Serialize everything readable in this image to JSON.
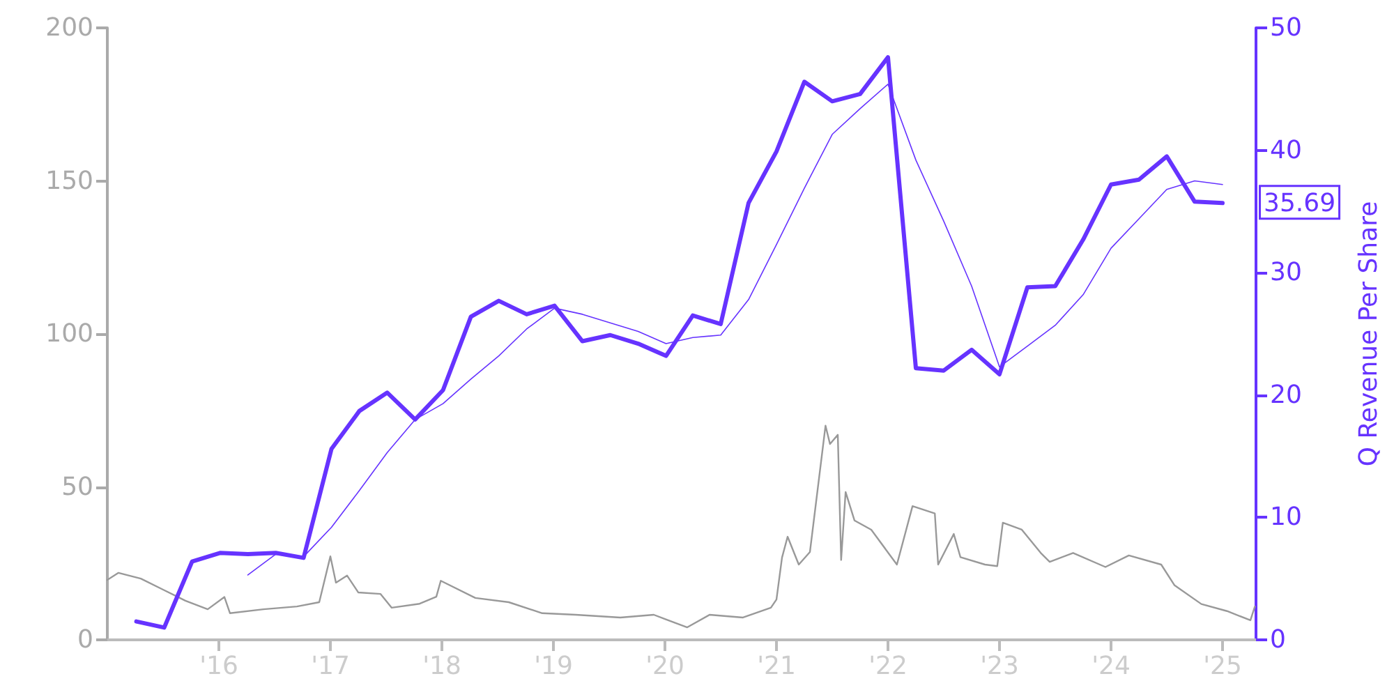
{
  "chart_data": {
    "type": "line",
    "y2label": "Q Revenue Per Share",
    "xlim": [
      2015.0,
      2025.3
    ],
    "xticks": [
      {
        "value": 2016,
        "label": "'16"
      },
      {
        "value": 2017,
        "label": "'17"
      },
      {
        "value": 2018,
        "label": "'18"
      },
      {
        "value": 2019,
        "label": "'19"
      },
      {
        "value": 2020,
        "label": "'20"
      },
      {
        "value": 2021,
        "label": "'21"
      },
      {
        "value": 2022,
        "label": "'22"
      },
      {
        "value": 2023,
        "label": "'23"
      },
      {
        "value": 2024,
        "label": "'24"
      },
      {
        "value": 2025,
        "label": "'25"
      }
    ],
    "ylim": [
      0,
      200
    ],
    "yticks": [
      0,
      50,
      100,
      150,
      200
    ],
    "y2lim": [
      0,
      50
    ],
    "y2ticks": [
      0,
      10,
      20,
      30,
      40,
      50
    ],
    "grid": false,
    "marker": "none",
    "series": [
      {
        "color": "#999999",
        "axis": "y",
        "x": [
          2015.0,
          2015.1,
          2015.3,
          2015.5,
          2015.7,
          2015.9,
          2016.05,
          2016.1,
          2016.4,
          2016.7,
          2016.9,
          2017.0,
          2017.05,
          2017.15,
          2017.25,
          2017.45,
          2017.55,
          2017.8,
          2017.95,
          2017.99,
          2018.3,
          2018.6,
          2018.9,
          2019.2,
          2019.6,
          2019.9,
          2020.0,
          2020.2,
          2020.4,
          2020.7,
          2020.95,
          2021.0,
          2021.05,
          2021.1,
          2021.2,
          2021.3,
          2021.44,
          2021.48,
          2021.55,
          2021.58,
          2021.62,
          2021.7,
          2021.85,
          2022.08,
          2022.22,
          2022.42,
          2022.45,
          2022.59,
          2022.65,
          2022.87,
          2022.98,
          2023.03,
          2023.2,
          2023.37,
          2023.45,
          2023.66,
          2023.95,
          2024.16,
          2024.45,
          2024.57,
          2024.81,
          2025.04,
          2025.25,
          2025.29
        ],
        "values": [
          19.6,
          21.9,
          20,
          16.4,
          12.8,
          10,
          14,
          8.7,
          10,
          10.9,
          12.3,
          27.3,
          18.7,
          21,
          15.5,
          15,
          10.5,
          11.8,
          14.1,
          19.3,
          13.7,
          12.3,
          8.7,
          8.2,
          7.3,
          8.2,
          6.8,
          4.1,
          8.2,
          7.3,
          10.5,
          13.2,
          26.9,
          33.7,
          24.6,
          28.7,
          70,
          64,
          67,
          26.1,
          48.3,
          39,
          36,
          24.6,
          43.7,
          41.3,
          24.6,
          34.6,
          27,
          24.6,
          24.1,
          38.3,
          36,
          28.4,
          25.5,
          28.4,
          23.8,
          27.6,
          24.6,
          17.8,
          11.7,
          9.4,
          6.4,
          10.9
        ]
      },
      {
        "color": "#6633ff",
        "axis": "y2",
        "x": [
          2015.26,
          2015.51,
          2015.76,
          2016.01,
          2016.26,
          2016.51,
          2016.76,
          2017.01,
          2017.26,
          2017.51,
          2017.76,
          2018.01,
          2018.26,
          2018.51,
          2018.76,
          2019.01,
          2019.26,
          2019.51,
          2019.76,
          2020.01,
          2020.25,
          2020.5,
          2020.75,
          2021.0,
          2021.25,
          2021.5,
          2021.75,
          2022.0,
          2022.25,
          2022.5,
          2022.75,
          2023.0,
          2023.25,
          2023.5,
          2023.75,
          2024.0,
          2024.25,
          2024.5,
          2024.75,
          2025.0
        ],
        "values": [
          1.5,
          1.0,
          6.4,
          7.1,
          7.0,
          7.1,
          6.7,
          15.6,
          18.7,
          20.2,
          18.0,
          20.4,
          26.4,
          27.7,
          26.6,
          27.3,
          24.4,
          24.9,
          24.2,
          23.2,
          26.5,
          25.8,
          35.7,
          39.9,
          45.6,
          44.0,
          44.6,
          47.6,
          22.2,
          22.0,
          23.7,
          21.7,
          28.8,
          28.9,
          32.7,
          37.2,
          37.6,
          39.5,
          35.8,
          35.69
        ]
      },
      {
        "color": "#6633ff",
        "axis": "y2",
        "x": [
          2016.26,
          2016.51,
          2016.76,
          2017.01,
          2017.26,
          2017.51,
          2017.76,
          2018.01,
          2018.26,
          2018.51,
          2018.76,
          2019.01,
          2019.26,
          2019.51,
          2019.76,
          2020.01,
          2020.25,
          2020.5,
          2020.75,
          2021.0,
          2021.25,
          2021.5,
          2021.75,
          2022.0,
          2022.25,
          2022.5,
          2022.75,
          2023.0,
          2023.25,
          2023.5,
          2023.75,
          2024.0,
          2024.25,
          2024.5,
          2024.75,
          2025.0
        ],
        "values": [
          5.3,
          7.0,
          6.8,
          9.2,
          12.2,
          15.3,
          18.0,
          19.3,
          21.3,
          23.2,
          25.4,
          27.1,
          26.6,
          25.9,
          25.2,
          24.2,
          24.7,
          24.9,
          27.8,
          32.3,
          36.9,
          41.3,
          43.4,
          45.4,
          39.2,
          34.2,
          28.9,
          22.3,
          24.0,
          25.7,
          28.2,
          32.0,
          34.4,
          36.8,
          37.5,
          37.2
        ]
      }
    ],
    "annotations": [
      "35.69"
    ]
  }
}
